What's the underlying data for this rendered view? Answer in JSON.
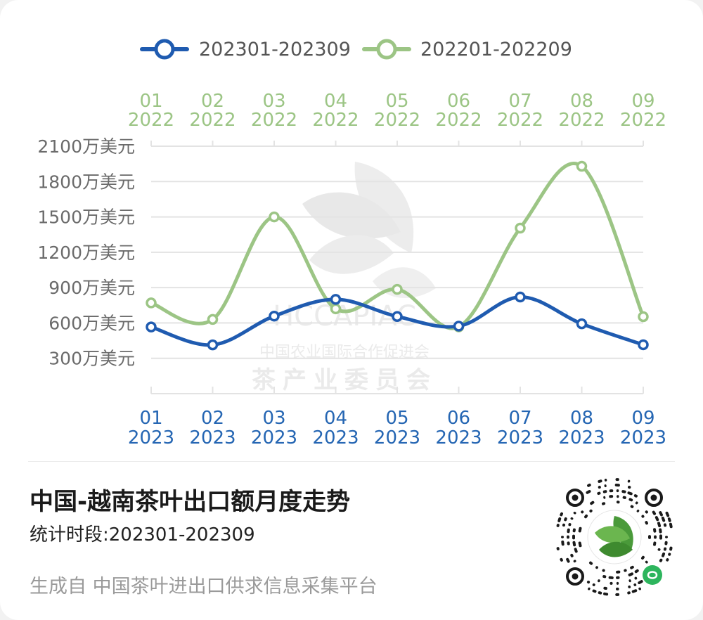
{
  "chart_data": {
    "type": "line",
    "categories": [
      "01",
      "02",
      "03",
      "04",
      "05",
      "06",
      "07",
      "08",
      "09"
    ],
    "series": [
      {
        "name": "202301-202309",
        "color": "#1f5bb0",
        "year": "2023",
        "values": [
          566,
          414,
          658,
          800,
          655,
          573,
          820,
          593,
          415
        ]
      },
      {
        "name": "202201-202209",
        "color": "#9cc585",
        "year": "2022",
        "values": [
          770,
          630,
          1500,
          720,
          885,
          567,
          1405,
          1930,
          653
        ]
      }
    ],
    "yticks": [
      "2100万美元",
      "1800万美元",
      "1500万美元",
      "1200万美元",
      "900万美元",
      "600万美元",
      "300万美元"
    ],
    "ytick_values": [
      2100,
      1800,
      1500,
      1200,
      900,
      600,
      300
    ],
    "ylim": [
      0,
      2100
    ],
    "grid": true,
    "legend_position": "top"
  },
  "watermark": {
    "logo_text": "HCCAPIAC",
    "org_line1": "中国农业国际合作促进会",
    "org_line2": "茶产业委员会"
  },
  "footer": {
    "title": "中国-越南茶叶出口额月度走势",
    "period_label": "统计时段:202301-202309",
    "source": "生成自  中国茶叶进出口供求信息采集平台"
  },
  "qr": {
    "icon": "tea-leaf-qr-code"
  }
}
